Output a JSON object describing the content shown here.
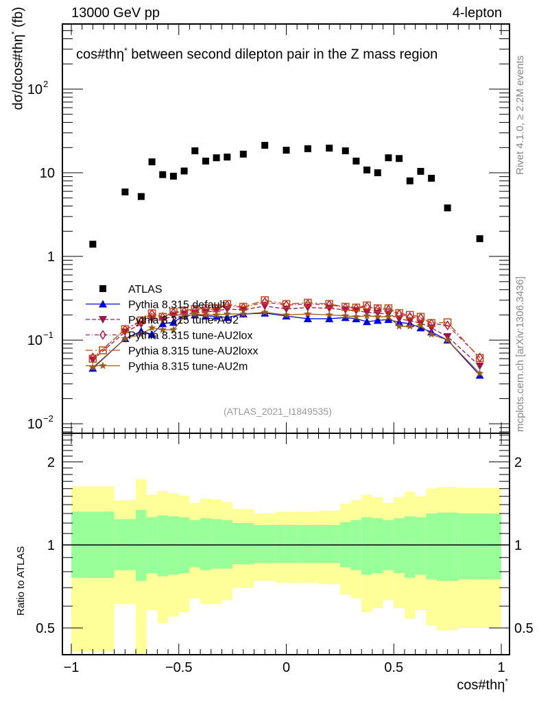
{
  "header": {
    "left": "13000 GeV pp",
    "right": "4-lepton"
  },
  "side_labels": {
    "rivet": "Rivet 4.1.0, ≥ 2.2M events",
    "mcplots": "mcplots.cern.ch [arXiv:1306.3436]"
  },
  "chart_data": [
    {
      "type": "scatter",
      "panel": "main",
      "title": "cos#thη* between second dilepton pair in the Z mass region",
      "title_main": "cos#thη",
      "title_sup": "*",
      "title_rest": " between second dilepton pair in the Z mass region",
      "watermark": "(ATLAS_2021_I1849535)",
      "xlabel": "cos#thη*",
      "xlabel_main": "cos#thη",
      "xlabel_sup": "*",
      "ylabel": "dσ/dcos#thη* (fb)",
      "ylabel_pre": "dσ/dcos#thη",
      "ylabel_sup": "*",
      "ylabel_post": "  (fb)",
      "xlim": [
        -1,
        1
      ],
      "ylim": [
        0.0077,
        600
      ],
      "yscale": "log",
      "x_ticks": [
        "−1",
        "−0.5",
        "0",
        "0.5",
        "1"
      ],
      "x_tick_values": [
        -1,
        -0.5,
        0,
        0.5,
        1
      ],
      "y_ticks": [
        {
          "value": 0.01,
          "base": "10",
          "exp": "−2"
        },
        {
          "value": 0.1,
          "base": "10",
          "exp": "−1"
        },
        {
          "value": 1,
          "base": "1",
          "exp": ""
        },
        {
          "value": 10,
          "base": "10",
          "exp": ""
        },
        {
          "value": 100,
          "base": "10",
          "exp": "2"
        }
      ],
      "legend_position": "center-left",
      "x": [
        -0.9,
        -0.75,
        -0.675,
        -0.625,
        -0.575,
        -0.525,
        -0.475,
        -0.425,
        -0.375,
        -0.325,
        -0.275,
        -0.2,
        -0.1,
        0.0,
        0.1,
        0.2,
        0.275,
        0.325,
        0.375,
        0.425,
        0.475,
        0.525,
        0.575,
        0.625,
        0.675,
        0.75,
        0.9
      ],
      "series": [
        {
          "name": "ATLAS",
          "color": "#000000",
          "marker": "square",
          "line": "none",
          "values": [
            1.4,
            5.9,
            5.2,
            13.5,
            9.5,
            9.1,
            10.5,
            18.3,
            13.8,
            15.1,
            15.4,
            16.7,
            21.3,
            18.6,
            19.4,
            19.7,
            18.3,
            13.8,
            10.8,
            10.0,
            15.1,
            14.8,
            8.0,
            10.4,
            8.6,
            3.8,
            1.63
          ]
        },
        {
          "name": "Pythia 8.315 default",
          "color": "#0000dd",
          "marker": "triangle-up",
          "line": "solid",
          "values": [
            0.046,
            0.104,
            0.128,
            0.117,
            0.157,
            0.163,
            0.197,
            0.2,
            0.194,
            0.192,
            0.186,
            0.205,
            0.21,
            0.194,
            0.18,
            0.18,
            0.186,
            0.18,
            0.166,
            0.172,
            0.176,
            0.163,
            0.157,
            0.14,
            0.125,
            0.1,
            0.038
          ]
        },
        {
          "name": "Pythia 8.315 tune-AU2",
          "color": "#a0144b",
          "marker": "triangle-down",
          "line": "dashed",
          "values": [
            0.058,
            0.125,
            0.155,
            0.18,
            0.175,
            0.195,
            0.205,
            0.21,
            0.215,
            0.225,
            0.235,
            0.23,
            0.255,
            0.235,
            0.245,
            0.24,
            0.23,
            0.225,
            0.215,
            0.21,
            0.205,
            0.18,
            0.17,
            0.16,
            0.14,
            0.11,
            0.049
          ]
        },
        {
          "name": "Pythia 8.315 tune-AU2lox",
          "color": "#c0144b",
          "marker": "diamond-open",
          "line": "dashdot",
          "values": [
            0.062,
            0.133,
            0.168,
            0.205,
            0.188,
            0.212,
            0.22,
            0.228,
            0.232,
            0.236,
            0.262,
            0.245,
            0.285,
            0.262,
            0.27,
            0.265,
            0.245,
            0.24,
            0.252,
            0.235,
            0.232,
            0.205,
            0.19,
            0.185,
            0.158,
            0.15,
            0.062
          ]
        },
        {
          "name": "Pythia 8.315 tune-AU2loxx",
          "color": "#c04a10",
          "marker": "square-open",
          "line": "longdashdot",
          "values": [
            0.06,
            0.135,
            0.172,
            0.209,
            0.19,
            0.217,
            0.225,
            0.235,
            0.24,
            0.24,
            0.27,
            0.25,
            0.3,
            0.27,
            0.28,
            0.27,
            0.25,
            0.245,
            0.26,
            0.24,
            0.24,
            0.21,
            0.2,
            0.19,
            0.16,
            0.163,
            0.061
          ]
        },
        {
          "name": "Pythia 8.315 tune-AU2m",
          "color": "#9c5a14",
          "marker": "star",
          "line": "solid",
          "values": [
            0.047,
            0.104,
            0.117,
            0.14,
            0.133,
            0.133,
            0.19,
            0.205,
            0.2,
            0.2,
            0.205,
            0.205,
            0.215,
            0.2,
            0.205,
            0.2,
            0.195,
            0.19,
            0.195,
            0.19,
            0.19,
            0.146,
            0.146,
            0.15,
            0.117,
            0.1,
            0.04
          ]
        }
      ]
    },
    {
      "type": "area",
      "panel": "ratio",
      "ylabel": "Ratio to ATLAS",
      "yscale": "log",
      "ylim": [
        0.4,
        2.54
      ],
      "xlim": [
        -1,
        1
      ],
      "y_ticks": [
        {
          "value": 0.5,
          "label": "0.5"
        },
        {
          "value": 1,
          "label": "1"
        },
        {
          "value": 2,
          "label": "2"
        }
      ],
      "reference_line": 1,
      "bin_edges": [
        -1.0,
        -0.8,
        -0.7,
        -0.65,
        -0.6,
        -0.55,
        -0.5,
        -0.45,
        -0.4,
        -0.35,
        -0.3,
        -0.25,
        -0.15,
        -0.05,
        0.05,
        0.15,
        0.25,
        0.3,
        0.35,
        0.4,
        0.45,
        0.5,
        0.55,
        0.6,
        0.65,
        0.7,
        0.8,
        1.0
      ],
      "bands": [
        {
          "name": "stat",
          "color": "#99ff99",
          "upper": [
            1.32,
            1.24,
            1.34,
            1.26,
            1.28,
            1.27,
            1.26,
            1.23,
            1.25,
            1.24,
            1.23,
            1.2,
            1.18,
            1.18,
            1.18,
            1.18,
            1.21,
            1.23,
            1.26,
            1.25,
            1.23,
            1.25,
            1.27,
            1.26,
            1.3,
            1.31,
            1.3
          ],
          "lower": [
            0.76,
            0.81,
            0.74,
            0.79,
            0.77,
            0.78,
            0.79,
            0.83,
            0.81,
            0.82,
            0.82,
            0.85,
            0.86,
            0.86,
            0.86,
            0.86,
            0.83,
            0.81,
            0.78,
            0.79,
            0.81,
            0.79,
            0.76,
            0.78,
            0.75,
            0.74,
            0.75
          ]
        },
        {
          "name": "total",
          "color": "#ffff99",
          "upper": [
            1.63,
            1.45,
            1.73,
            1.52,
            1.57,
            1.54,
            1.51,
            1.42,
            1.47,
            1.46,
            1.43,
            1.35,
            1.3,
            1.32,
            1.32,
            1.33,
            1.41,
            1.45,
            1.52,
            1.49,
            1.42,
            1.49,
            1.56,
            1.5,
            1.6,
            1.62,
            1.61
          ]
        },
        {
          "name": "total-lower",
          "color": "#ffff99",
          "lower": [
            0.41,
            0.61,
            0.39,
            0.58,
            0.52,
            0.55,
            0.57,
            0.64,
            0.61,
            0.61,
            0.63,
            0.7,
            0.74,
            0.73,
            0.73,
            0.72,
            0.66,
            0.64,
            0.57,
            0.59,
            0.63,
            0.59,
            0.54,
            0.58,
            0.51,
            0.49,
            0.5
          ]
        }
      ]
    }
  ]
}
